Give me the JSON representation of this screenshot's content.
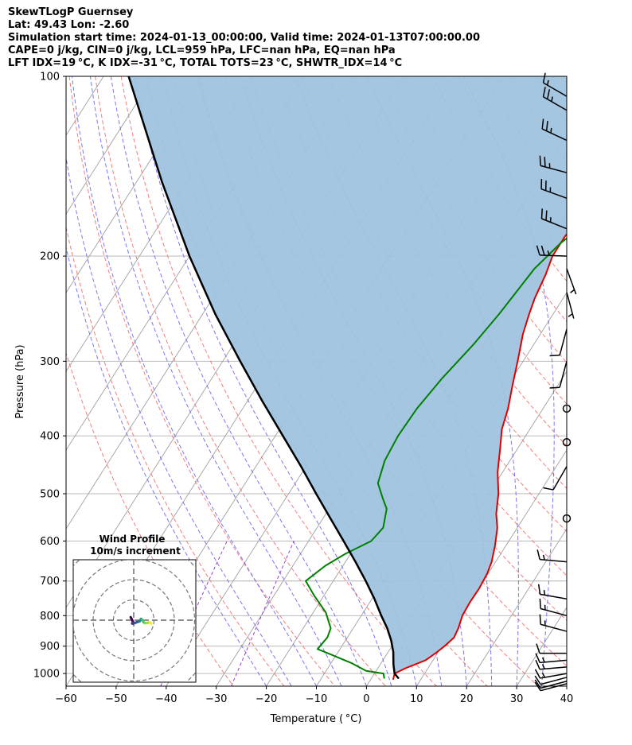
{
  "header": {
    "line1": "SkewTLogP Guernsey",
    "line2": "Lat: 49.43   Lon: -2.60",
    "line3": "Simulation start time: 2024-01-13_00:00:00, Valid time: 2024-01-13T07:00:00.00",
    "line4": "CAPE=0 j/kg, CIN=0 j/kg, LCL=959 hPa, LFC=nan hPa, EQ=nan hPa",
    "line5": "LFT IDX=19 °C, K IDX=-31 °C, TOTAL TOTS=23 °C, SHWTR_IDX=14 °C"
  },
  "colors": {
    "temperature": "#e00000",
    "dewpoint": "#008000",
    "parcel": "#000000",
    "shading": "#9fc3de",
    "dry_adiabat": "#f07070",
    "moist_adiabat": "#6a6af0",
    "mixing_ratio": "#9a40c8",
    "isotherm": "#a0a0a0"
  },
  "chart_data": [
    {
      "type": "line",
      "subtype": "skew-t log-p",
      "title": "",
      "xlabel": "Temperature ( °C)",
      "ylabel": "Pressure (hPa)",
      "xlim": [
        -60,
        40
      ],
      "ylim": [
        1050,
        100
      ],
      "y_scale": "log",
      "xticks": [
        "−60",
        "−50",
        "−40",
        "−30",
        "−20",
        "−10",
        "0",
        "10",
        "20",
        "30",
        "40"
      ],
      "yticks": [
        "100",
        "200",
        "300",
        "400",
        "500",
        "600",
        "700",
        "800",
        "900",
        "1000"
      ],
      "grid": true,
      "series": [
        {
          "key": "temperature",
          "points": [
            [
              4.5,
              1024
            ],
            [
              4.0,
              1000
            ],
            [
              5.5,
              980
            ],
            [
              8.5,
              950
            ],
            [
              9.8,
              920
            ],
            [
              10.5,
              900
            ],
            [
              11.3,
              870
            ],
            [
              11.0,
              840
            ],
            [
              10.2,
              800
            ],
            [
              10.0,
              760
            ],
            [
              10.1,
              720
            ],
            [
              9.8,
              680
            ],
            [
              9.2,
              650
            ],
            [
              7.8,
              610
            ],
            [
              6.0,
              570
            ],
            [
              4.0,
              540
            ],
            [
              1.9,
              500
            ],
            [
              -1.0,
              460
            ],
            [
              -3.5,
              420
            ],
            [
              -5.6,
              390
            ],
            [
              -7.0,
              360
            ],
            [
              -9.0,
              330
            ],
            [
              -11.1,
              300
            ],
            [
              -13.5,
              270
            ],
            [
              -14.8,
              250
            ],
            [
              -15.7,
              235
            ],
            [
              -16.5,
              215
            ],
            [
              -17.5,
              200
            ],
            [
              -17.5,
              185
            ],
            [
              -16.2,
              170
            ],
            [
              -13.0,
              160
            ],
            [
              -8.5,
              150
            ],
            [
              -4.2,
              140
            ],
            [
              -1.5,
              130
            ],
            [
              0.8,
              120
            ],
            [
              2.5,
              110
            ],
            [
              3.5,
              100
            ]
          ]
        },
        {
          "key": "dewpoint",
          "points": [
            [
              2.6,
              1020
            ],
            [
              1.8,
              1000
            ],
            [
              -2.0,
              990
            ],
            [
              -6.0,
              960
            ],
            [
              -11.0,
              930
            ],
            [
              -14.5,
              910
            ],
            [
              -14.0,
              870
            ],
            [
              -14.5,
              840
            ],
            [
              -17.5,
              790
            ],
            [
              -22.0,
              740
            ],
            [
              -25.5,
              700
            ],
            [
              -23.5,
              660
            ],
            [
              -21.0,
              630
            ],
            [
              -17.5,
              600
            ],
            [
              -16.8,
              570
            ],
            [
              -18.5,
              530
            ],
            [
              -20.5,
              510
            ],
            [
              -23.5,
              480
            ],
            [
              -25.0,
              440
            ],
            [
              -25.5,
              400
            ],
            [
              -25.2,
              360
            ],
            [
              -24.0,
              320
            ],
            [
              -22.0,
              280
            ],
            [
              -20.8,
              250
            ],
            [
              -20.0,
              225
            ],
            [
              -19.5,
              210
            ],
            [
              -17.5,
              190
            ],
            [
              -14.5,
              175
            ],
            [
              -13.5,
              160
            ],
            [
              -14.0,
              150
            ],
            [
              -12.0,
              140
            ],
            [
              -8.5,
              125
            ],
            [
              -5.0,
              110
            ],
            [
              -2.0,
              100
            ]
          ]
        },
        {
          "key": "parcel",
          "points": [
            [
              5.5,
              1020
            ],
            [
              4.0,
              1000
            ],
            [
              2.6,
              965
            ],
            [
              1.0,
              920
            ],
            [
              -0.9,
              880
            ],
            [
              -3.2,
              840
            ],
            [
              -6.0,
              800
            ],
            [
              -9.5,
              750
            ],
            [
              -13.5,
              700
            ],
            [
              -18.0,
              650
            ],
            [
              -23.0,
              600
            ],
            [
              -28.5,
              550
            ],
            [
              -34.5,
              500
            ],
            [
              -41.0,
              450
            ],
            [
              -48.5,
              400
            ],
            [
              -57.0,
              350
            ],
            [
              -66.5,
              300
            ],
            [
              -77.5,
              250
            ],
            [
              -90.0,
              200
            ],
            [
              -105.0,
              150
            ],
            [
              -125.0,
              100
            ]
          ]
        }
      ],
      "wind_barbs": [
        {
          "p": 1040,
          "speed_kt": 10,
          "dir": 255
        },
        {
          "p": 1030,
          "speed_kt": 10,
          "dir": 255
        },
        {
          "p": 1015,
          "speed_kt": 10,
          "dir": 255
        },
        {
          "p": 1000,
          "speed_kt": 15,
          "dir": 260
        },
        {
          "p": 975,
          "speed_kt": 15,
          "dir": 265
        },
        {
          "p": 950,
          "speed_kt": 15,
          "dir": 265
        },
        {
          "p": 925,
          "speed_kt": 10,
          "dir": 270
        },
        {
          "p": 850,
          "speed_kt": 15,
          "dir": 285
        },
        {
          "p": 800,
          "speed_kt": 15,
          "dir": 285
        },
        {
          "p": 750,
          "speed_kt": 15,
          "dir": 280
        },
        {
          "p": 650,
          "speed_kt": 15,
          "dir": 275
        },
        {
          "p": 550,
          "speed_kt": 0,
          "dir": 0
        },
        {
          "p": 450,
          "speed_kt": 10,
          "dir": 210
        },
        {
          "p": 410,
          "speed_kt": 0,
          "dir": 0
        },
        {
          "p": 360,
          "speed_kt": 0,
          "dir": 0
        },
        {
          "p": 300,
          "speed_kt": 10,
          "dir": 195
        },
        {
          "p": 265,
          "speed_kt": 10,
          "dir": 195
        },
        {
          "p": 230,
          "speed_kt": 5,
          "dir": 165
        },
        {
          "p": 210,
          "speed_kt": 5,
          "dir": 160
        },
        {
          "p": 200,
          "speed_kt": 25,
          "dir": 272
        },
        {
          "p": 180,
          "speed_kt": 25,
          "dir": 292
        },
        {
          "p": 160,
          "speed_kt": 25,
          "dir": 290
        },
        {
          "p": 145,
          "speed_kt": 25,
          "dir": 285
        },
        {
          "p": 128,
          "speed_kt": 25,
          "dir": 295
        },
        {
          "p": 114,
          "speed_kt": 25,
          "dir": 300
        },
        {
          "p": 108,
          "speed_kt": 15,
          "dir": 300
        }
      ]
    },
    {
      "type": "scatter",
      "subtype": "hodograph",
      "title": "Wind Profile",
      "subtitle": "10m/s increment",
      "ring_increment": 10,
      "points": [
        [
          -1.5,
          1.5
        ],
        [
          -1.0,
          0.5
        ],
        [
          -0.5,
          -0.5
        ],
        [
          -0.5,
          -1.2
        ],
        [
          -0.8,
          -1.6
        ],
        [
          -0.5,
          -1.7
        ],
        [
          0.5,
          -1.4
        ],
        [
          1.5,
          -1.0
        ],
        [
          2.5,
          -0.7
        ],
        [
          3.0,
          -0.5
        ],
        [
          3.2,
          -0.2
        ],
        [
          3.3,
          0.2
        ],
        [
          3.5,
          0.6
        ],
        [
          3.8,
          0.5
        ],
        [
          4.2,
          0.2
        ],
        [
          4.5,
          -0.4
        ],
        [
          5.0,
          -1.2
        ],
        [
          5.8,
          -1.5
        ],
        [
          6.8,
          -1.3
        ],
        [
          7.5,
          -1.2
        ],
        [
          8.0,
          -1.1
        ],
        [
          8.3,
          -1.4
        ],
        [
          8.5,
          -1.7
        ]
      ]
    }
  ]
}
